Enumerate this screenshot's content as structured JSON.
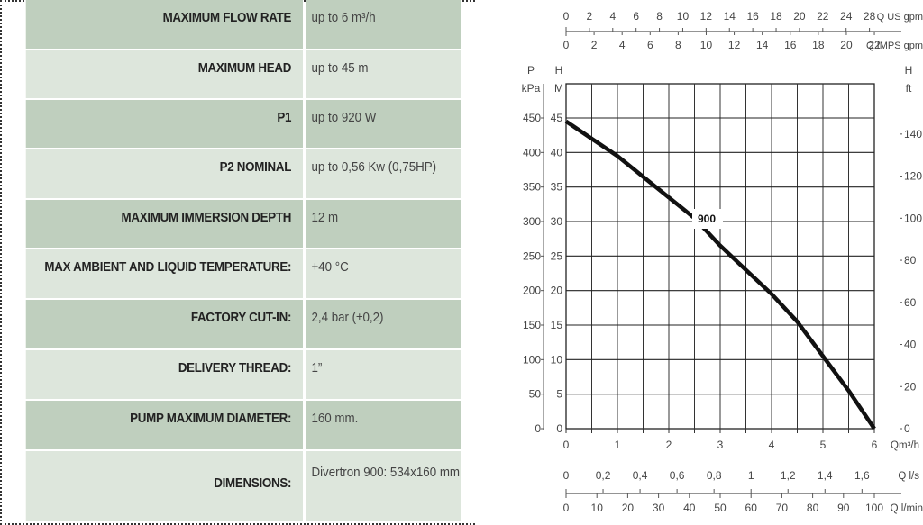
{
  "specs": [
    {
      "label": "MAXIMUM FLOW RATE",
      "value": "up to 6 m³/h",
      "shade": "dark"
    },
    {
      "label": "MAXIMUM HEAD",
      "value": "up to 45 m",
      "shade": "light"
    },
    {
      "label": "P1",
      "value": "up to 920 W",
      "shade": "dark"
    },
    {
      "label": "P2 NOMINAL",
      "value": "up to 0,56 Kw (0,75HP)",
      "shade": "light"
    },
    {
      "label": "MAXIMUM IMMERSION DEPTH",
      "value": "12 m",
      "shade": "dark"
    },
    {
      "label": "MAX AMBIENT AND LIQUID TEMPERATURE:",
      "value": "+40 °C",
      "shade": "light"
    },
    {
      "label": "FACTORY CUT-IN:",
      "value": "2,4 bar (±0,2)",
      "shade": "dark"
    },
    {
      "label": "DELIVERY THREAD:",
      "value": "1”",
      "shade": "light"
    },
    {
      "label": "PUMP MAXIMUM DIAMETER:",
      "value": "160 mm.",
      "shade": "dark"
    },
    {
      "label": "DIMENSIONS:",
      "value": "Divertron 900: 534x160 mm",
      "shade": "light"
    }
  ],
  "colors": {
    "row_dark": "#bfcfbe",
    "row_light": "#dde6dc",
    "curve": "#111111",
    "grid": "#333333"
  },
  "chart_data": {
    "type": "line",
    "title": "",
    "xlabel": "Qm³/h",
    "ylabel": "H M",
    "xlim": [
      0,
      6
    ],
    "ylim": [
      0,
      50
    ],
    "grid": true,
    "series": [
      {
        "name": "900",
        "x": [
          0,
          0.5,
          1,
          1.5,
          2,
          2.5,
          3,
          3.5,
          4,
          4.5,
          5,
          5.5,
          6
        ],
        "values": [
          44.5,
          42,
          39.5,
          36.5,
          33.5,
          30.5,
          26.5,
          23,
          19.5,
          15.5,
          10.5,
          5.5,
          0
        ]
      }
    ],
    "curve_label": "900",
    "axes": {
      "x_main": {
        "label": "Qm³/h",
        "ticks": [
          "0",
          "1",
          "2",
          "3",
          "4",
          "5",
          "6"
        ]
      },
      "y_head_m": {
        "label_top": "H",
        "unit": "M",
        "ticks": [
          "0",
          "5",
          "10",
          "15",
          "20",
          "25",
          "30",
          "35",
          "40",
          "45"
        ]
      },
      "y_pressure_kpa": {
        "label_top": "P",
        "unit": "kPa",
        "ticks": [
          "0",
          "50",
          "100",
          "150",
          "200",
          "250",
          "300",
          "350",
          "400",
          "450"
        ]
      },
      "y_head_ft": {
        "label_top": "H",
        "unit": "ft",
        "ticks": [
          "0",
          "20",
          "40",
          "60",
          "80",
          "100",
          "120",
          "140"
        ]
      },
      "x_us_gpm": {
        "label": "Q US gpm",
        "ticks": [
          "0",
          "2",
          "4",
          "6",
          "8",
          "10",
          "12",
          "14",
          "16",
          "18",
          "20",
          "22",
          "24",
          "28"
        ]
      },
      "x_imp_gpm": {
        "label": "Q IMPS gpm",
        "ticks": [
          "0",
          "2",
          "4",
          "6",
          "8",
          "10",
          "12",
          "14",
          "16",
          "18",
          "20",
          "22"
        ]
      },
      "x_ls": {
        "label": "Q l/s",
        "ticks": [
          "0",
          "0,2",
          "0,4",
          "0,6",
          "0,8",
          "1",
          "1,2",
          "1,4",
          "1,6"
        ]
      },
      "x_lmin": {
        "label": "Q l/min",
        "ticks": [
          "0",
          "10",
          "20",
          "30",
          "40",
          "50",
          "60",
          "70",
          "80",
          "90",
          "100"
        ]
      }
    }
  }
}
